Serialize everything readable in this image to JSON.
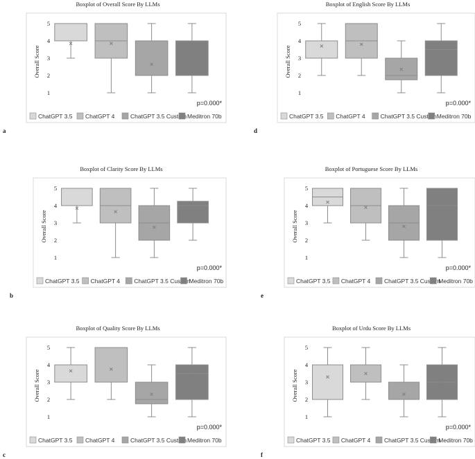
{
  "colors": {
    "chatgpt35": "#d9d9d9",
    "chatgpt4": "#bfbfbf",
    "chatgpt35custom": "#a6a6a6",
    "meditron70b": "#808080",
    "stroke": "#8c8c8c",
    "frame": "#d9d9d9"
  },
  "legend": {
    "items": [
      {
        "key": "chatgpt35",
        "label": "ChatGPT 3.5"
      },
      {
        "key": "chatgpt4",
        "label": "ChatGPT 4"
      },
      {
        "key": "chatgpt35custom",
        "label": "ChatGPT 3.5 Custom"
      },
      {
        "key": "meditron70b",
        "label": "Meditron 70b"
      }
    ]
  },
  "chart_data": [
    {
      "type": "boxplot",
      "panel_label": "a",
      "title": "Boxplot of Overall Score By LLMs",
      "ylabel": "Overall Score",
      "yticks": [
        "1",
        "2",
        "3",
        "4",
        "5"
      ],
      "ylim": [
        0.2,
        5.4
      ],
      "p_value": "p=0.000*",
      "series": [
        {
          "name": "ChatGPT 3.5",
          "min": 3,
          "q1": 4,
          "median": 4,
          "q3": 5,
          "max": 5,
          "mean": 3.85
        },
        {
          "name": "ChatGPT 4",
          "min": 1,
          "q1": 3,
          "median": 4,
          "q3": 5,
          "max": 5,
          "mean": 3.85
        },
        {
          "name": "ChatGPT 3.5 Custom",
          "min": 1,
          "q1": 2,
          "median": 2,
          "q3": 4,
          "max": 5,
          "mean": 2.65
        },
        {
          "name": "Meditron 70b",
          "min": 1,
          "q1": 2,
          "median": 2,
          "q3": 4,
          "max": 5,
          "mean": 3.35
        }
      ]
    },
    {
      "type": "boxplot",
      "panel_label": "d",
      "title": "Boxplot of English Score By LLMs",
      "ylabel": "Overall Score",
      "yticks": [
        "1",
        "2",
        "3",
        "4",
        "5"
      ],
      "ylim": [
        0.2,
        5.4
      ],
      "p_value": "p=0.000*",
      "series": [
        {
          "name": "ChatGPT 3.5",
          "min": 2,
          "q1": 3,
          "median": 3,
          "q3": 4,
          "max": 5,
          "mean": 3.7
        },
        {
          "name": "ChatGPT 4",
          "min": 2,
          "q1": 3,
          "median": 4,
          "q3": 5,
          "max": 5,
          "mean": 3.8
        },
        {
          "name": "ChatGPT 3.5 Custom",
          "min": 1,
          "q1": 1.75,
          "median": 2,
          "q3": 3,
          "max": 4,
          "mean": 2.35
        },
        {
          "name": "Meditron 70b",
          "min": 1,
          "q1": 2,
          "median": 3.5,
          "q3": 4,
          "max": 5,
          "mean": 3.3
        }
      ]
    },
    {
      "type": "boxplot",
      "panel_label": "b",
      "title": "Boxplot of Clarity Score By LLMs",
      "ylabel": "Overall Score",
      "yticks": [
        "1",
        "2",
        "3",
        "4",
        "5"
      ],
      "ylim": [
        0.2,
        5.4
      ],
      "p_value": "p=0.000*",
      "series": [
        {
          "name": "ChatGPT 3.5",
          "min": 3,
          "q1": 4,
          "median": 4,
          "q3": 5,
          "max": 5,
          "mean": 3.85
        },
        {
          "name": "ChatGPT 4",
          "min": 1,
          "q1": 3,
          "median": 4,
          "q3": 5,
          "max": 5,
          "mean": 3.65
        },
        {
          "name": "ChatGPT 3.5 Custom",
          "min": 1,
          "q1": 2,
          "median": 3,
          "q3": 4,
          "max": 5,
          "mean": 2.75
        },
        {
          "name": "Meditron 70b",
          "min": 2,
          "q1": 3,
          "median": 4,
          "q3": 4.25,
          "max": 5,
          "mean": 3.3
        }
      ]
    },
    {
      "type": "boxplot",
      "panel_label": "e",
      "title": "Boxplot of Portuguese Score By LLMs",
      "ylabel": "Overall Score",
      "yticks": [
        "1",
        "2",
        "3",
        "4",
        "5"
      ],
      "ylim": [
        0.2,
        5.4
      ],
      "p_value": "p=0.000*",
      "series": [
        {
          "name": "ChatGPT 3.5",
          "min": 3,
          "q1": 4,
          "median": 4.5,
          "q3": 5,
          "max": 5,
          "mean": 4.2
        },
        {
          "name": "ChatGPT 4",
          "min": 2,
          "q1": 3,
          "median": 4,
          "q3": 5,
          "max": 5,
          "mean": 3.9
        },
        {
          "name": "ChatGPT 3.5 Custom",
          "min": 1,
          "q1": 2,
          "median": 3,
          "q3": 4,
          "max": 5,
          "mean": 2.8
        },
        {
          "name": "Meditron 70b",
          "min": 1,
          "q1": 2,
          "median": 4,
          "q3": 5,
          "max": 5,
          "mean": 3.6
        }
      ]
    },
    {
      "type": "boxplot",
      "panel_label": "c",
      "title": "Boxplot of Quality Score By LLMs",
      "ylabel": "Overall Score",
      "yticks": [
        "1",
        "2",
        "3",
        "4",
        "5"
      ],
      "ylim": [
        0.2,
        5.4
      ],
      "p_value": "p=0.000*",
      "series": [
        {
          "name": "ChatGPT 3.5",
          "min": 2,
          "q1": 3,
          "median": 3,
          "q3": 4,
          "max": 5,
          "mean": 3.65
        },
        {
          "name": "ChatGPT 4",
          "min": 2,
          "q1": 3,
          "median": 3,
          "q3": 5,
          "max": 5,
          "mean": 3.75
        },
        {
          "name": "ChatGPT 3.5 Custom",
          "min": 1,
          "q1": 1.75,
          "median": 2,
          "q3": 3,
          "max": 4,
          "mean": 2.3
        },
        {
          "name": "Meditron 70b",
          "min": 1,
          "q1": 2,
          "median": 3.5,
          "q3": 4,
          "max": 5,
          "mean": 3.35
        }
      ]
    },
    {
      "type": "boxplot",
      "panel_label": "f",
      "title": "Boxplot of Urdu Score By LLMs",
      "ylabel": "Overall Score",
      "yticks": [
        "1",
        "2",
        "3",
        "4",
        "5"
      ],
      "ylim": [
        0.2,
        5.4
      ],
      "p_value": "p=0.000*",
      "series": [
        {
          "name": "ChatGPT 3.5",
          "min": 1,
          "q1": 2,
          "median": 4,
          "q3": 4,
          "max": 5,
          "mean": 3.3
        },
        {
          "name": "ChatGPT 4",
          "min": 2,
          "q1": 3,
          "median": 4,
          "q3": 4,
          "max": 5,
          "mean": 3.5
        },
        {
          "name": "ChatGPT 3.5 Custom",
          "min": 1,
          "q1": 2,
          "median": 2,
          "q3": 3,
          "max": 4,
          "mean": 2.3
        },
        {
          "name": "Meditron 70b",
          "min": 1,
          "q1": 2,
          "median": 3,
          "q3": 4,
          "max": 5,
          "mean": 3.05
        }
      ]
    }
  ]
}
